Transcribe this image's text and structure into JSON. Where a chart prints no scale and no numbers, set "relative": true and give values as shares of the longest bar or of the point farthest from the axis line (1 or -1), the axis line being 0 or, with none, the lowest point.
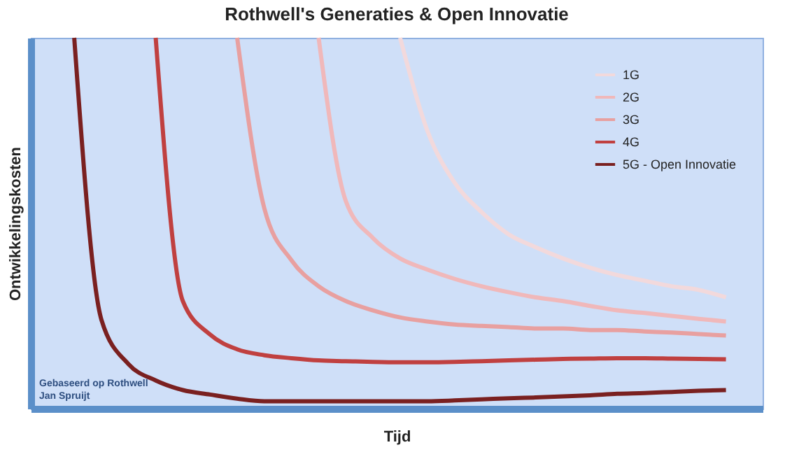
{
  "chart_data": {
    "type": "line",
    "title": "Rothwell's Generaties & Open Innovatie",
    "xlabel": "Tijd",
    "ylabel": "Ontwikkelingskosten",
    "relative": true,
    "legend": "top right",
    "grid": false,
    "marker": "none",
    "line_style": "solid",
    "annotations": [
      "Gebaseerd op Rothwell",
      "Jan Spruijt"
    ],
    "categories": [
      null,
      null,
      null,
      null,
      null,
      null,
      null,
      null,
      null,
      null,
      null,
      null,
      null,
      null,
      null,
      null,
      null,
      null,
      null,
      null,
      null,
      null,
      null,
      null,
      null
    ],
    "series": [
      {
        "name": "1G",
        "color": "#f2d9dc",
        "values": [
          null,
          null,
          null,
          null,
          null,
          null,
          null,
          null,
          null,
          null,
          null,
          null,
          1,
          0.75,
          0.61,
          0.53,
          0.47,
          0.435,
          0.405,
          0.38,
          0.36,
          0.345,
          0.33,
          0.32,
          0.3
        ]
      },
      {
        "name": "2G",
        "color": "#f0b8ba",
        "values": [
          null,
          null,
          null,
          null,
          null,
          null,
          null,
          null,
          null,
          1,
          0.56,
          0.46,
          0.405,
          0.375,
          0.35,
          0.33,
          0.314,
          0.3,
          0.29,
          0.277,
          0.265,
          0.258,
          0.25,
          0.242,
          0.235
        ]
      },
      {
        "name": "3G",
        "color": "#e8a0a0",
        "values": [
          null,
          null,
          null,
          null,
          null,
          null,
          1,
          0.54,
          0.4,
          0.33,
          0.29,
          0.265,
          0.246,
          0.235,
          0.227,
          0.223,
          0.22,
          0.216,
          0.216,
          0.212,
          0.212,
          0.208,
          0.205,
          0.201,
          0.197
        ]
      },
      {
        "name": "4G",
        "color": "#c04040",
        "values": [
          null,
          null,
          null,
          1,
          0.29,
          0.2,
          0.16,
          0.144,
          0.136,
          0.13,
          0.128,
          0.126,
          0.125,
          0.125,
          0.126,
          0.128,
          0.13,
          0.132,
          0.134,
          0.135,
          0.136,
          0.136,
          0.135,
          0.134,
          0.133
        ]
      },
      {
        "name": "5G - Open Innovatie",
        "color": "#7a2020",
        "values": [
          1,
          0.24,
          0.12,
          0.076,
          0.05,
          0.038,
          0.027,
          0.02,
          0.02,
          0.02,
          0.02,
          0.02,
          0.02,
          0.02,
          0.022,
          0.025,
          0.028,
          0.03,
          0.033,
          0.036,
          0.04,
          0.042,
          0.045,
          0.048,
          0.05
        ]
      }
    ]
  }
}
